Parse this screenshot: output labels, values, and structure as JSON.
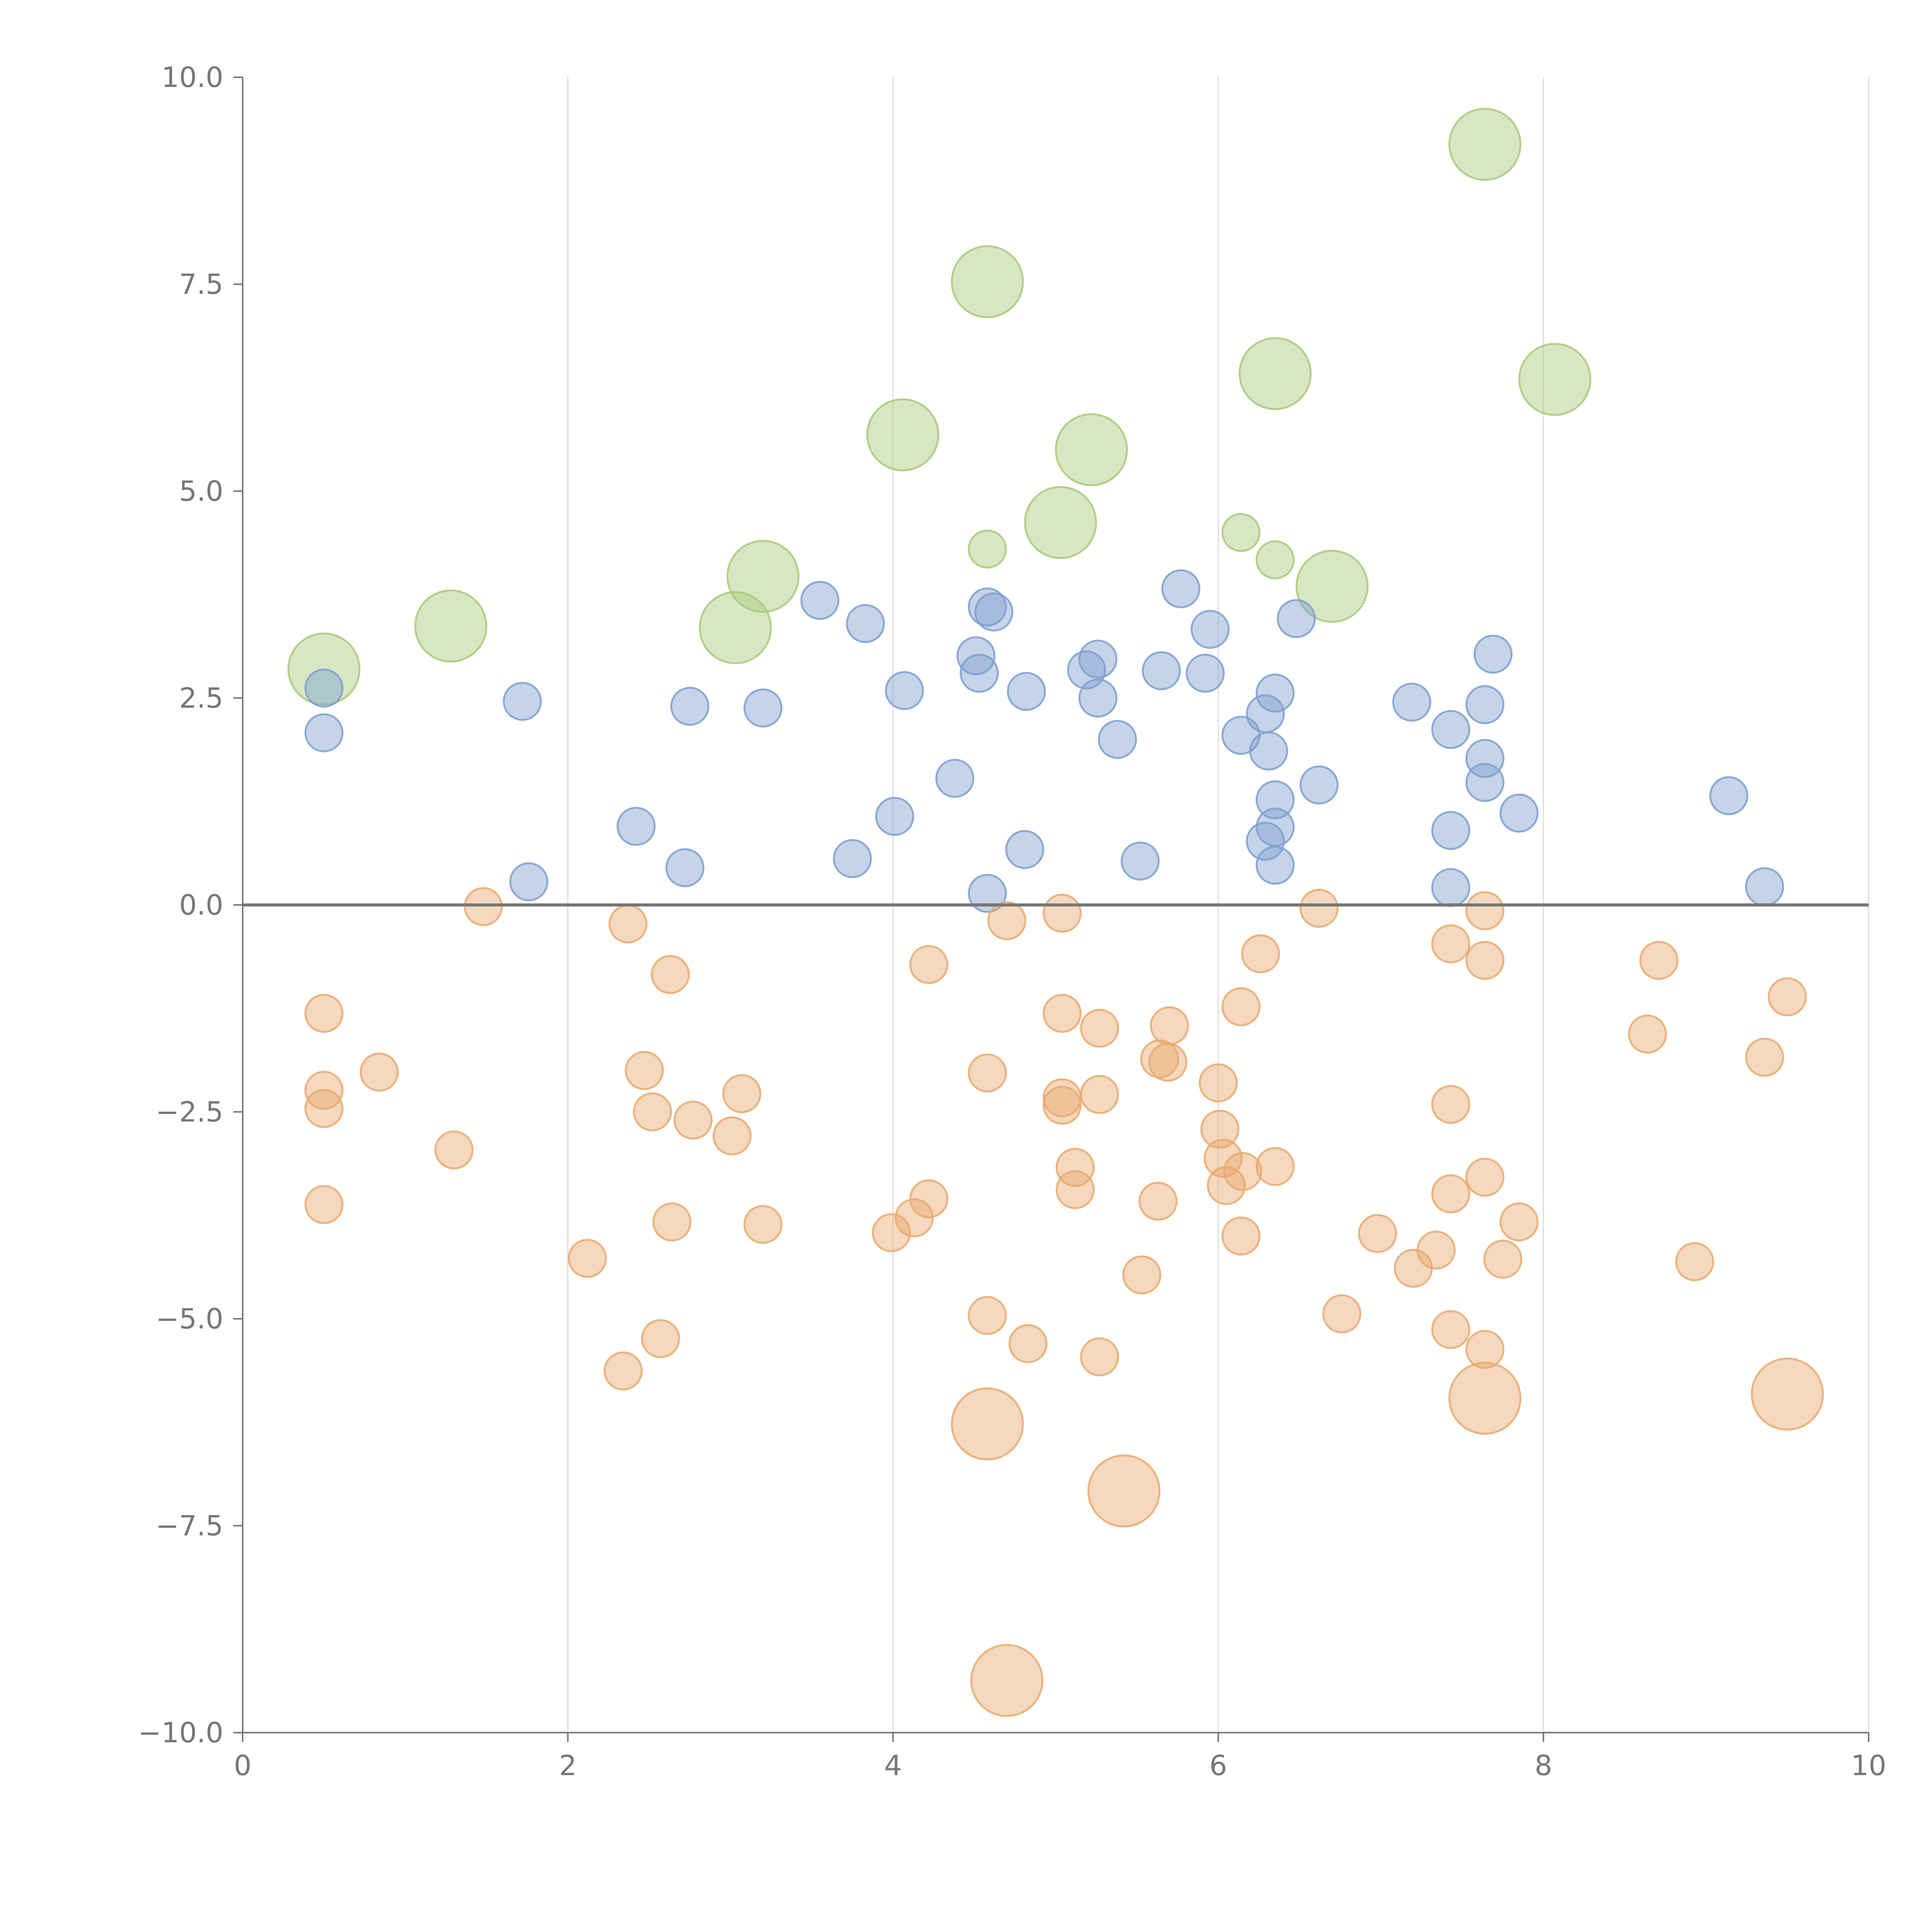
{
  "chart_data": {
    "type": "scatter",
    "title": "",
    "xlabel": "",
    "ylabel": "",
    "xlim": [
      0,
      10
    ],
    "ylim": [
      -10,
      10
    ],
    "x_ticks": [
      0,
      2,
      4,
      6,
      8,
      10
    ],
    "x_tick_labels": [
      "0",
      "2",
      "4",
      "6",
      "8",
      "10"
    ],
    "y_ticks": [
      10,
      7.5,
      5,
      2.5,
      0,
      -2.5,
      -5,
      -7.5,
      -10
    ],
    "y_tick_labels": [
      "10.0",
      "7.5",
      "5.0",
      "2.5",
      "0.0",
      "−2.5",
      "−5.0",
      "−7.5",
      "−10.0"
    ],
    "grid": "vertical",
    "reference_line_y": 0,
    "series": [
      {
        "name": "green",
        "color": "#a9c97a",
        "values": [
          {
            "x": 0.5,
            "y": 2.85,
            "size": 1.0
          },
          {
            "x": 1.28,
            "y": 3.37,
            "size": 1.0
          },
          {
            "x": 3.03,
            "y": 3.35,
            "size": 1.0
          },
          {
            "x": 3.2,
            "y": 3.97,
            "size": 1.0
          },
          {
            "x": 4.06,
            "y": 5.68,
            "size": 1.0
          },
          {
            "x": 4.58,
            "y": 7.53,
            "size": 1.0
          },
          {
            "x": 4.58,
            "y": 4.3,
            "size": 0.45
          },
          {
            "x": 5.03,
            "y": 4.62,
            "size": 1.0
          },
          {
            "x": 5.22,
            "y": 5.5,
            "size": 1.0
          },
          {
            "x": 6.14,
            "y": 4.5,
            "size": 0.45
          },
          {
            "x": 6.35,
            "y": 6.42,
            "size": 1.0
          },
          {
            "x": 6.35,
            "y": 4.17,
            "size": 0.45
          },
          {
            "x": 6.7,
            "y": 3.85,
            "size": 1.0
          },
          {
            "x": 7.64,
            "y": 9.19,
            "size": 1.0
          },
          {
            "x": 8.07,
            "y": 6.35,
            "size": 1.0
          }
        ]
      },
      {
        "name": "blue",
        "color": "#7f9fcf",
        "values": [
          {
            "x": 0.5,
            "y": 2.62,
            "size": 0.5
          },
          {
            "x": 0.5,
            "y": 2.08,
            "size": 0.5
          },
          {
            "x": 1.72,
            "y": 2.46,
            "size": 0.5
          },
          {
            "x": 1.76,
            "y": 0.28,
            "size": 0.5
          },
          {
            "x": 2.42,
            "y": 0.95,
            "size": 0.5
          },
          {
            "x": 2.72,
            "y": 0.45,
            "size": 0.5
          },
          {
            "x": 2.75,
            "y": 2.4,
            "size": 0.5
          },
          {
            "x": 3.2,
            "y": 2.38,
            "size": 0.5
          },
          {
            "x": 3.55,
            "y": 3.68,
            "size": 0.5
          },
          {
            "x": 3.75,
            "y": 0.56,
            "size": 0.5
          },
          {
            "x": 3.83,
            "y": 3.4,
            "size": 0.5
          },
          {
            "x": 4.01,
            "y": 1.07,
            "size": 0.5
          },
          {
            "x": 4.07,
            "y": 2.59,
            "size": 0.5
          },
          {
            "x": 4.38,
            "y": 1.53,
            "size": 0.5
          },
          {
            "x": 4.51,
            "y": 3.01,
            "size": 0.5
          },
          {
            "x": 4.53,
            "y": 2.8,
            "size": 0.5
          },
          {
            "x": 4.58,
            "y": 3.6,
            "size": 0.5
          },
          {
            "x": 4.62,
            "y": 3.54,
            "size": 0.5
          },
          {
            "x": 4.58,
            "y": 0.14,
            "size": 0.5
          },
          {
            "x": 4.81,
            "y": 0.67,
            "size": 0.5
          },
          {
            "x": 4.82,
            "y": 2.58,
            "size": 0.5
          },
          {
            "x": 5.19,
            "y": 2.84,
            "size": 0.5
          },
          {
            "x": 5.26,
            "y": 2.97,
            "size": 0.5
          },
          {
            "x": 5.26,
            "y": 2.5,
            "size": 0.5
          },
          {
            "x": 5.38,
            "y": 2.0,
            "size": 0.5
          },
          {
            "x": 5.52,
            "y": 0.53,
            "size": 0.5
          },
          {
            "x": 5.65,
            "y": 2.83,
            "size": 0.5
          },
          {
            "x": 5.77,
            "y": 3.82,
            "size": 0.5
          },
          {
            "x": 5.92,
            "y": 2.8,
            "size": 0.5
          },
          {
            "x": 5.95,
            "y": 3.33,
            "size": 0.5
          },
          {
            "x": 6.14,
            "y": 2.05,
            "size": 0.5
          },
          {
            "x": 6.29,
            "y": 2.31,
            "size": 0.5
          },
          {
            "x": 6.31,
            "y": 1.86,
            "size": 0.5
          },
          {
            "x": 6.29,
            "y": 0.77,
            "size": 0.5
          },
          {
            "x": 6.35,
            "y": 2.56,
            "size": 0.5
          },
          {
            "x": 6.35,
            "y": 1.27,
            "size": 0.5
          },
          {
            "x": 6.35,
            "y": 0.94,
            "size": 0.5
          },
          {
            "x": 6.35,
            "y": 0.48,
            "size": 0.5
          },
          {
            "x": 6.48,
            "y": 3.46,
            "size": 0.5
          },
          {
            "x": 6.62,
            "y": 1.45,
            "size": 0.5
          },
          {
            "x": 7.19,
            "y": 2.45,
            "size": 0.5
          },
          {
            "x": 7.43,
            "y": 2.12,
            "size": 0.5
          },
          {
            "x": 7.43,
            "y": 0.9,
            "size": 0.5
          },
          {
            "x": 7.43,
            "y": 0.21,
            "size": 0.5
          },
          {
            "x": 7.64,
            "y": 2.42,
            "size": 0.5
          },
          {
            "x": 7.64,
            "y": 1.77,
            "size": 0.5
          },
          {
            "x": 7.64,
            "y": 1.48,
            "size": 0.5
          },
          {
            "x": 7.69,
            "y": 3.03,
            "size": 0.5
          },
          {
            "x": 7.85,
            "y": 1.11,
            "size": 0.5
          },
          {
            "x": 9.14,
            "y": 1.32,
            "size": 0.5
          },
          {
            "x": 9.36,
            "y": 0.22,
            "size": 0.5
          }
        ]
      },
      {
        "name": "orange",
        "color": "#e8a96e",
        "values": [
          {
            "x": 0.5,
            "y": -1.31,
            "size": 0.5
          },
          {
            "x": 0.5,
            "y": -2.24,
            "size": 0.5
          },
          {
            "x": 0.5,
            "y": -2.46,
            "size": 0.5
          },
          {
            "x": 0.5,
            "y": -3.62,
            "size": 0.5
          },
          {
            "x": 0.84,
            "y": -2.02,
            "size": 0.5
          },
          {
            "x": 1.3,
            "y": -2.96,
            "size": 0.5
          },
          {
            "x": 1.48,
            "y": -0.02,
            "size": 0.5
          },
          {
            "x": 2.12,
            "y": -4.27,
            "size": 0.5
          },
          {
            "x": 2.34,
            "y": -5.63,
            "size": 0.5
          },
          {
            "x": 2.37,
            "y": -0.23,
            "size": 0.5
          },
          {
            "x": 2.47,
            "y": -2.0,
            "size": 0.5
          },
          {
            "x": 2.52,
            "y": -2.5,
            "size": 0.5
          },
          {
            "x": 2.57,
            "y": -5.24,
            "size": 0.5
          },
          {
            "x": 2.63,
            "y": -0.84,
            "size": 0.5
          },
          {
            "x": 2.64,
            "y": -3.83,
            "size": 0.5
          },
          {
            "x": 2.77,
            "y": -2.6,
            "size": 0.5
          },
          {
            "x": 3.01,
            "y": -2.79,
            "size": 0.5
          },
          {
            "x": 3.07,
            "y": -2.28,
            "size": 0.5
          },
          {
            "x": 3.2,
            "y": -3.86,
            "size": 0.5
          },
          {
            "x": 3.99,
            "y": -3.96,
            "size": 0.5
          },
          {
            "x": 4.13,
            "y": -3.78,
            "size": 0.5
          },
          {
            "x": 4.22,
            "y": -0.72,
            "size": 0.5
          },
          {
            "x": 4.22,
            "y": -3.55,
            "size": 0.5
          },
          {
            "x": 4.58,
            "y": -2.03,
            "size": 0.5
          },
          {
            "x": 4.58,
            "y": -4.96,
            "size": 0.5
          },
          {
            "x": 4.58,
            "y": -6.27,
            "size": 1.0
          },
          {
            "x": 4.7,
            "y": -0.19,
            "size": 0.5
          },
          {
            "x": 4.7,
            "y": -9.37,
            "size": 1.0
          },
          {
            "x": 4.83,
            "y": -5.3,
            "size": 0.5
          },
          {
            "x": 5.04,
            "y": -0.1,
            "size": 0.5
          },
          {
            "x": 5.04,
            "y": -1.31,
            "size": 0.5
          },
          {
            "x": 5.04,
            "y": -2.33,
            "size": 0.5
          },
          {
            "x": 5.04,
            "y": -2.42,
            "size": 0.5
          },
          {
            "x": 5.12,
            "y": -3.17,
            "size": 0.5
          },
          {
            "x": 5.12,
            "y": -3.44,
            "size": 0.5
          },
          {
            "x": 5.27,
            "y": -1.49,
            "size": 0.5
          },
          {
            "x": 5.27,
            "y": -2.29,
            "size": 0.5
          },
          {
            "x": 5.27,
            "y": -5.46,
            "size": 0.5
          },
          {
            "x": 5.42,
            "y": -7.08,
            "size": 1.0
          },
          {
            "x": 5.53,
            "y": -4.47,
            "size": 0.5
          },
          {
            "x": 5.63,
            "y": -3.58,
            "size": 0.5
          },
          {
            "x": 5.64,
            "y": -1.86,
            "size": 0.5
          },
          {
            "x": 5.69,
            "y": -1.9,
            "size": 0.5
          },
          {
            "x": 5.7,
            "y": -1.46,
            "size": 0.5
          },
          {
            "x": 6.0,
            "y": -2.15,
            "size": 0.5
          },
          {
            "x": 6.01,
            "y": -2.71,
            "size": 0.5
          },
          {
            "x": 6.03,
            "y": -3.06,
            "size": 0.5
          },
          {
            "x": 6.05,
            "y": -3.39,
            "size": 0.5
          },
          {
            "x": 6.14,
            "y": -1.23,
            "size": 0.5
          },
          {
            "x": 6.14,
            "y": -4.0,
            "size": 0.5
          },
          {
            "x": 6.15,
            "y": -3.22,
            "size": 0.5
          },
          {
            "x": 6.26,
            "y": -0.59,
            "size": 0.5
          },
          {
            "x": 6.35,
            "y": -3.16,
            "size": 0.5
          },
          {
            "x": 6.62,
            "y": -0.04,
            "size": 0.5
          },
          {
            "x": 6.76,
            "y": -4.94,
            "size": 0.5
          },
          {
            "x": 6.98,
            "y": -3.97,
            "size": 0.5
          },
          {
            "x": 7.2,
            "y": -4.39,
            "size": 0.5
          },
          {
            "x": 7.34,
            "y": -4.17,
            "size": 0.5
          },
          {
            "x": 7.43,
            "y": -0.47,
            "size": 0.5
          },
          {
            "x": 7.43,
            "y": -2.41,
            "size": 0.5
          },
          {
            "x": 7.43,
            "y": -3.49,
            "size": 0.5
          },
          {
            "x": 7.43,
            "y": -5.13,
            "size": 0.5
          },
          {
            "x": 7.64,
            "y": -0.07,
            "size": 0.5
          },
          {
            "x": 7.64,
            "y": -0.67,
            "size": 0.5
          },
          {
            "x": 7.64,
            "y": -3.29,
            "size": 0.5
          },
          {
            "x": 7.64,
            "y": -5.37,
            "size": 0.5
          },
          {
            "x": 7.64,
            "y": -5.96,
            "size": 1.0
          },
          {
            "x": 7.75,
            "y": -4.28,
            "size": 0.5
          },
          {
            "x": 7.85,
            "y": -3.83,
            "size": 0.5
          },
          {
            "x": 8.64,
            "y": -1.56,
            "size": 0.5
          },
          {
            "x": 8.71,
            "y": -0.67,
            "size": 0.5
          },
          {
            "x": 8.93,
            "y": -4.31,
            "size": 0.5
          },
          {
            "x": 9.36,
            "y": -1.84,
            "size": 0.5
          },
          {
            "x": 9.5,
            "y": -1.11,
            "size": 0.5
          },
          {
            "x": 9.5,
            "y": -5.91,
            "size": 1.0
          }
        ]
      }
    ]
  }
}
